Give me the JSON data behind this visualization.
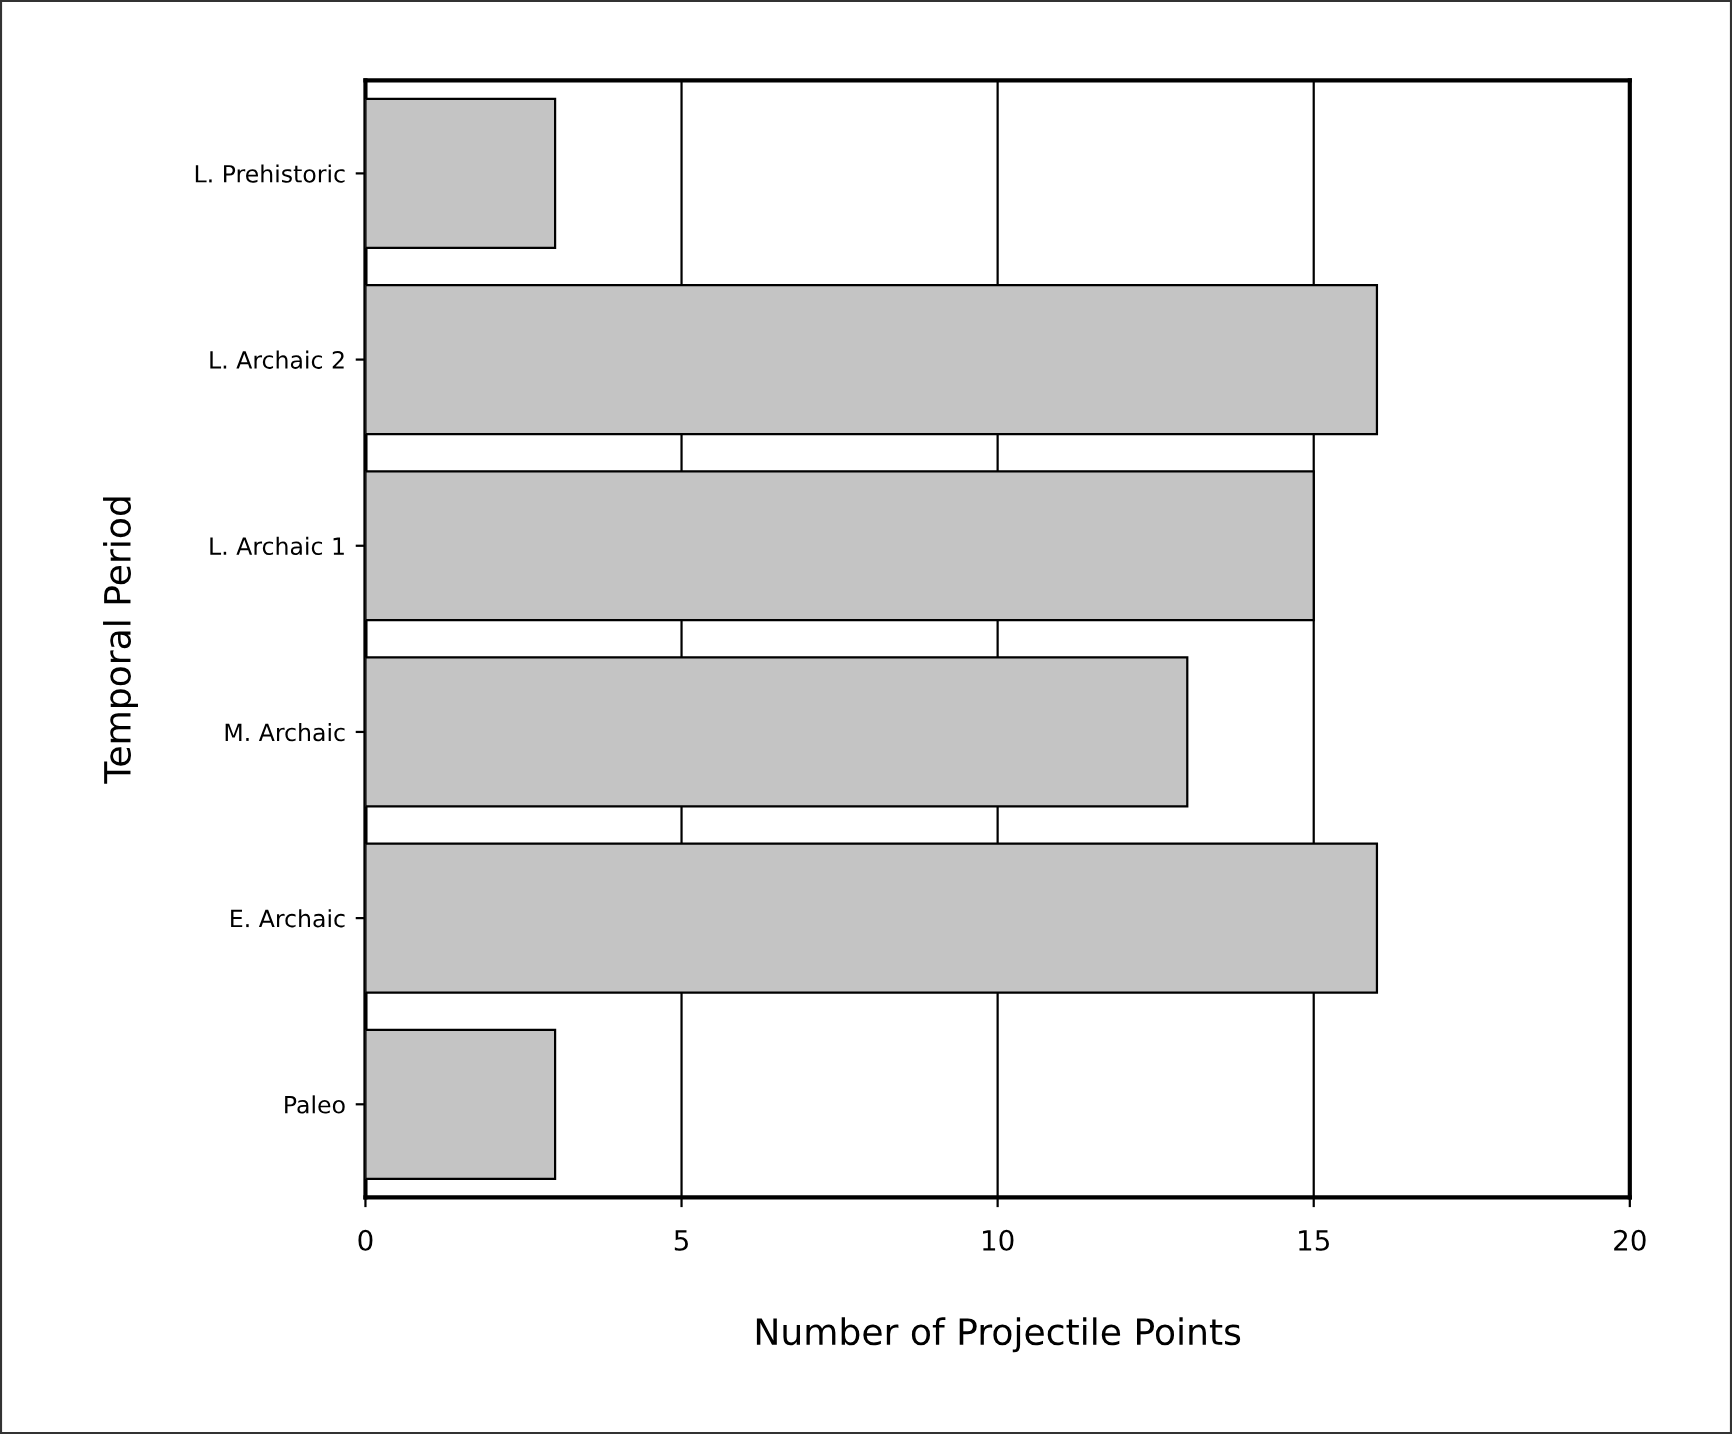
{
  "chart_data": {
    "type": "bar",
    "orientation": "horizontal",
    "xlabel": "Number of Projectile Points",
    "ylabel": "Temporal Period",
    "categories": [
      "L. Prehistoric",
      "L. Archaic 2",
      "L. Archaic 1",
      "M. Archaic",
      "E. Archaic",
      "Paleo"
    ],
    "values": [
      3,
      16,
      15,
      13,
      16,
      3
    ],
    "color": "#c4c4c4",
    "xlim": [
      0,
      20
    ],
    "xticks": [
      0,
      5,
      10,
      15,
      20
    ],
    "grid": "x",
    "legend": false
  }
}
